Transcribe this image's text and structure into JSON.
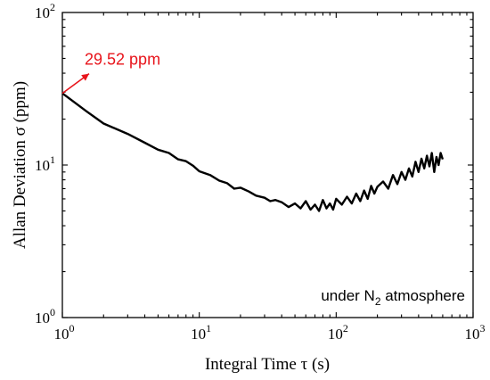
{
  "chart_data": {
    "type": "line",
    "xlabel": "Integral Time τ (s)",
    "ylabel": "Allan Deviation σ (ppm)",
    "xscale": "log",
    "yscale": "log",
    "xlim": [
      1,
      1000
    ],
    "ylim": [
      1,
      100
    ],
    "x_ticks": [
      {
        "base": "10",
        "exp": "0"
      },
      {
        "base": "10",
        "exp": "1"
      },
      {
        "base": "10",
        "exp": "2"
      },
      {
        "base": "10",
        "exp": "3"
      }
    ],
    "y_ticks": [
      {
        "base": "10",
        "exp": "0"
      },
      {
        "base": "10",
        "exp": "1"
      },
      {
        "base": "10",
        "exp": "2"
      }
    ],
    "grid": false,
    "series_color": "#000000",
    "annotation": {
      "text": "29.52 ppm",
      "x": 1,
      "y": 29.52,
      "color": "#e8141b"
    },
    "condition_label": {
      "prefix": "under N",
      "subscript": "2",
      "suffix": " atmosphere"
    },
    "series": [
      {
        "x": [
          1,
          1.5,
          2,
          3,
          4,
          5,
          6,
          7,
          8,
          9,
          10,
          12,
          14,
          16,
          18,
          20,
          23,
          26,
          30,
          33,
          36,
          40,
          45,
          50,
          55,
          60,
          65,
          70,
          75,
          80,
          85,
          90,
          95,
          100,
          110,
          120,
          130,
          140,
          150,
          160,
          170,
          180,
          190,
          200,
          220,
          240,
          260,
          280,
          300,
          320,
          340,
          360,
          380,
          400,
          420,
          440,
          460,
          480,
          500,
          520,
          540,
          560,
          580,
          600
        ],
        "y": [
          29.52,
          22.5,
          18.7,
          16.0,
          14.0,
          12.6,
          12.0,
          10.9,
          10.6,
          9.9,
          9.1,
          8.6,
          7.9,
          7.6,
          7.0,
          7.1,
          6.7,
          6.3,
          6.1,
          5.8,
          5.9,
          5.7,
          5.3,
          5.6,
          5.2,
          5.8,
          5.1,
          5.5,
          5.0,
          5.9,
          5.2,
          5.6,
          5.1,
          6.0,
          5.5,
          6.2,
          5.6,
          6.5,
          5.8,
          6.8,
          6.0,
          7.3,
          6.5,
          7.2,
          7.8,
          7.0,
          8.6,
          7.5,
          9.0,
          8.0,
          9.5,
          8.4,
          10.5,
          9.0,
          11.0,
          9.5,
          11.5,
          9.8,
          12.0,
          9.0,
          11.3,
          10.0,
          12.0,
          10.9
        ]
      }
    ]
  }
}
